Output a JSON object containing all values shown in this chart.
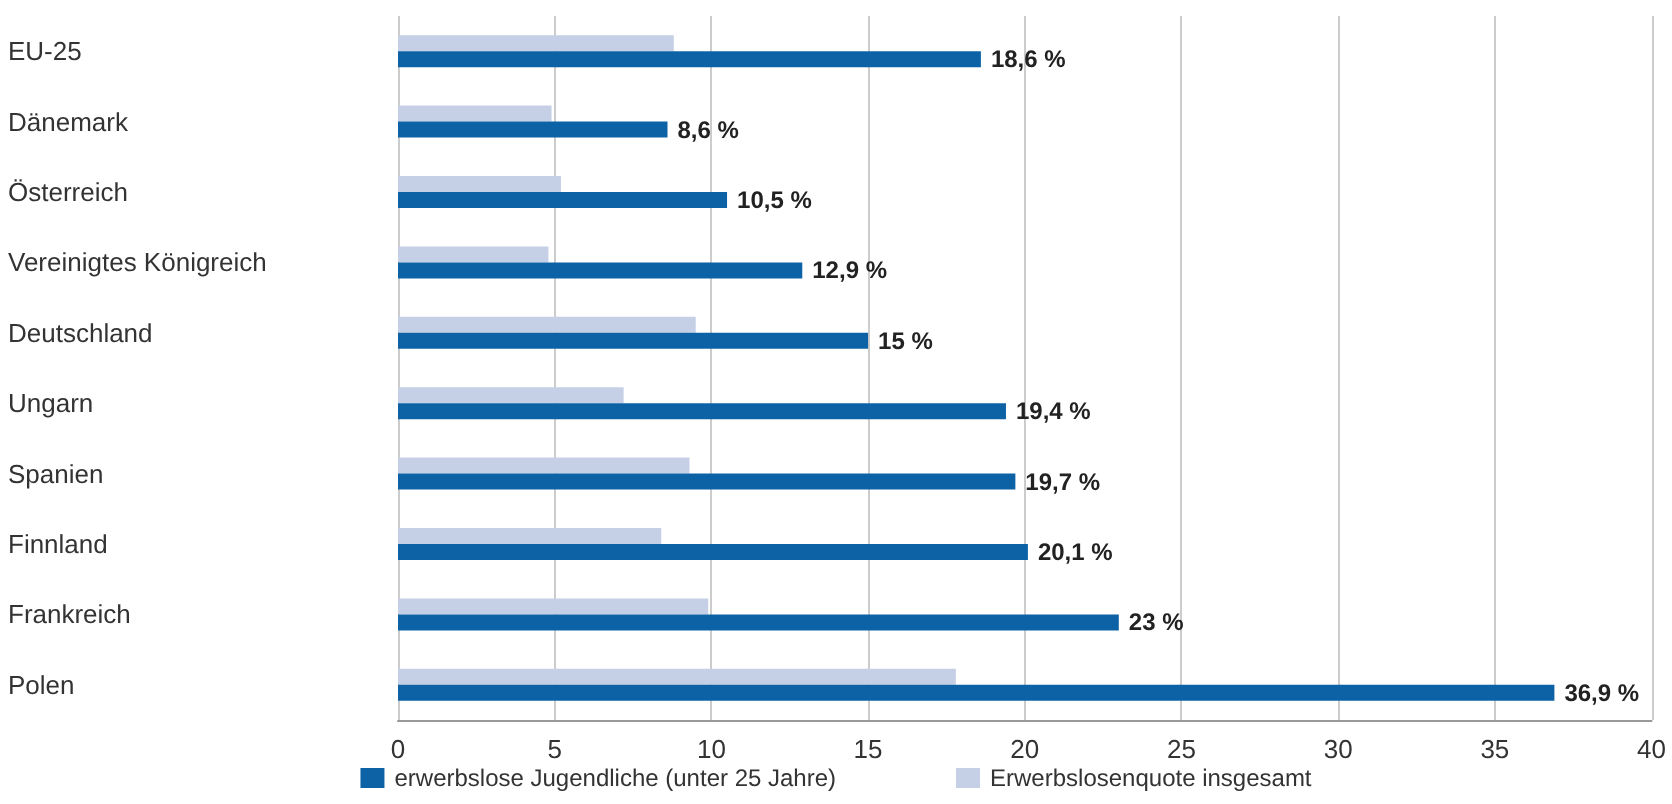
{
  "chart_data": {
    "type": "bar",
    "orientation": "horizontal",
    "categories": [
      "EU-25",
      "Dänemark",
      "Österreich",
      "Vereinigtes Königreich",
      "Deutschland",
      "Ungarn",
      "Spanien",
      "Finnland",
      "Frankreich",
      "Polen"
    ],
    "series": [
      {
        "name": "erwerbslose Jugendliche (unter 25 Jahre)",
        "color": "#0d62a6",
        "values": [
          18.6,
          8.6,
          10.5,
          12.9,
          15,
          19.4,
          19.7,
          20.1,
          23,
          36.9
        ],
        "value_labels": [
          "18,6 %",
          "8,6 %",
          "10,5 %",
          "12,9 %",
          "15 %",
          "19,4 %",
          "19,7 %",
          "20,1 %",
          "23 %",
          "36,9 %"
        ]
      },
      {
        "name": "Erwerbslosenquote insgesamt",
        "color": "#c5cfe6",
        "values": [
          8.8,
          4.9,
          5.2,
          4.8,
          9.5,
          7.2,
          9.3,
          8.4,
          9.9,
          17.8
        ]
      }
    ],
    "xlim": [
      0,
      40
    ],
    "xticks": [
      0,
      5,
      10,
      15,
      20,
      25,
      30,
      35,
      40
    ],
    "grid": "x",
    "legend": "bottom"
  }
}
